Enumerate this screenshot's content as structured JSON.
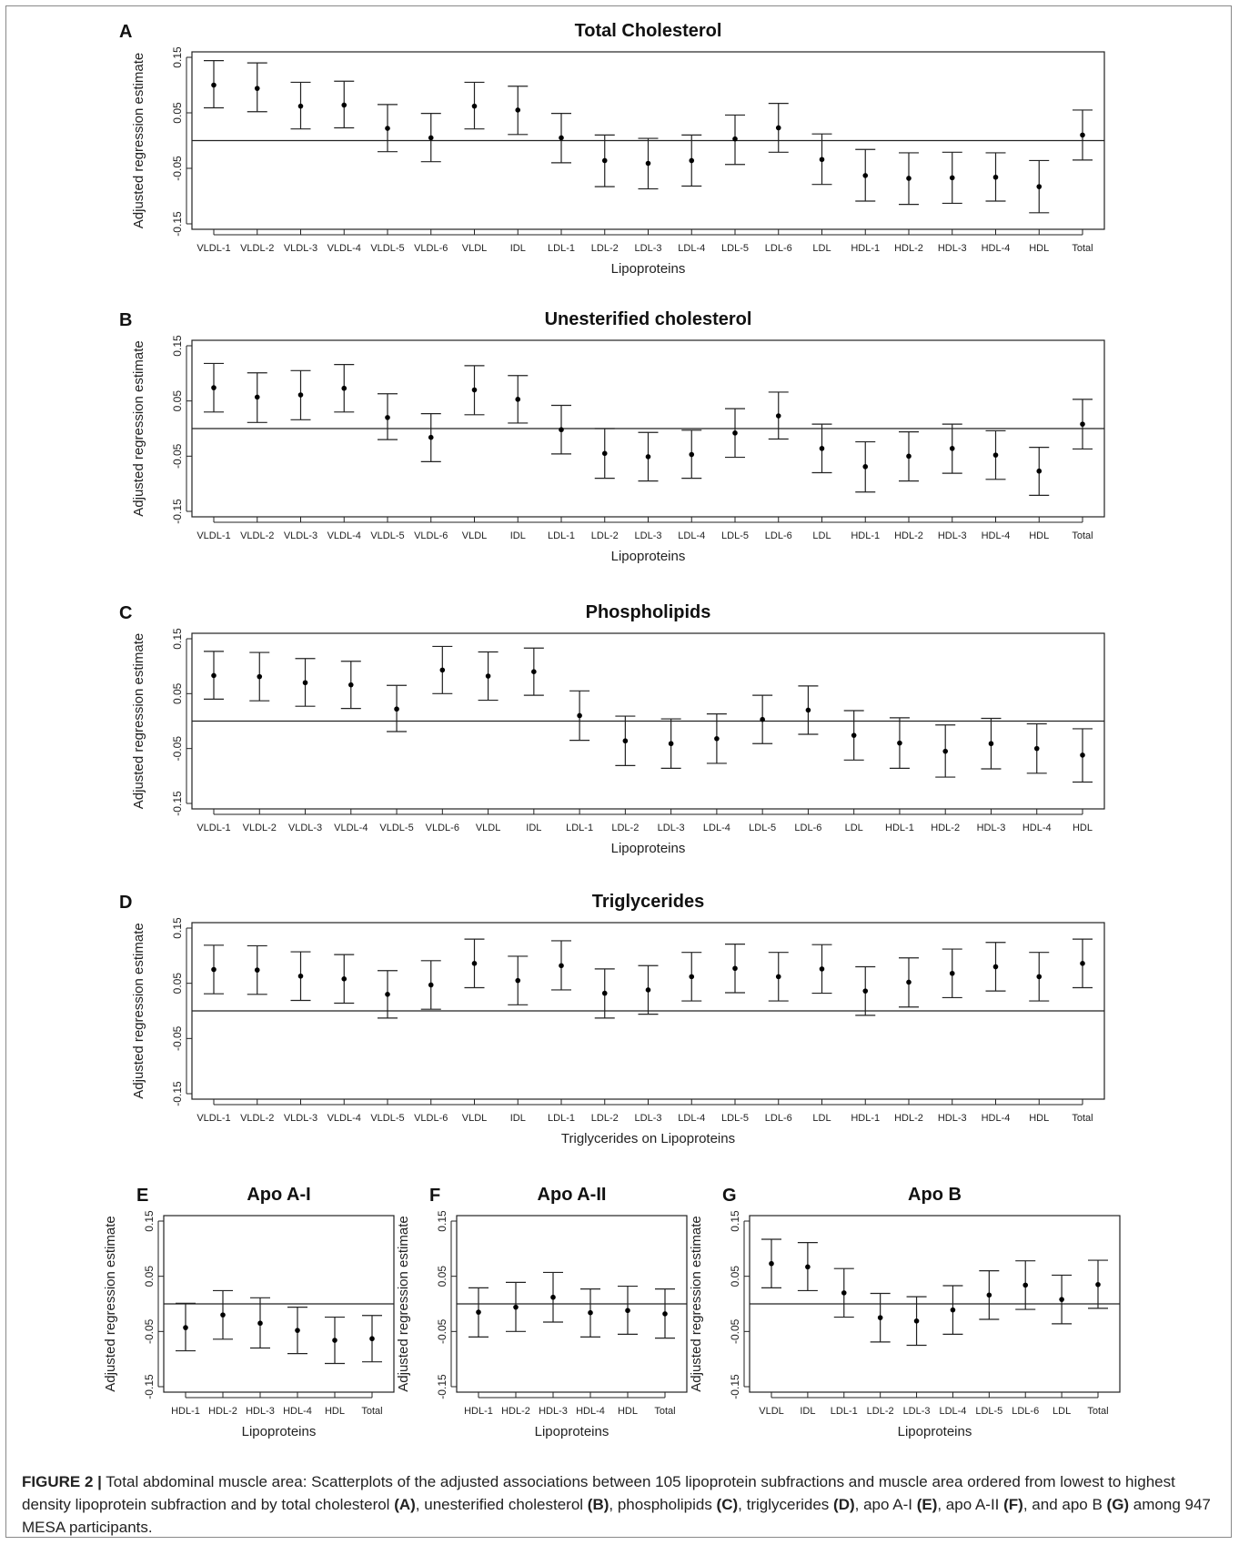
{
  "figure": {
    "caption_lead": "FIGURE 2 |",
    "caption_parts": [
      {
        "t": " Total abdominal muscle area: Scatterplots of the adjusted associations between 105 lipoprotein subfractions and muscle area ordered from lowest to highest density lipoprotein subfraction and by total cholesterol ",
        "b": false
      },
      {
        "t": "(A)",
        "b": true
      },
      {
        "t": ", unesterified cholesterol ",
        "b": false
      },
      {
        "t": "(B)",
        "b": true
      },
      {
        "t": ", phospholipids ",
        "b": false
      },
      {
        "t": "(C)",
        "b": true
      },
      {
        "t": ", triglycerides ",
        "b": false
      },
      {
        "t": "(D)",
        "b": true
      },
      {
        "t": ", apo A-I ",
        "b": false
      },
      {
        "t": "(E)",
        "b": true
      },
      {
        "t": ", apo A-II ",
        "b": false
      },
      {
        "t": "(F)",
        "b": true
      },
      {
        "t": ", and apo B ",
        "b": false
      },
      {
        "t": "(G)",
        "b": true
      },
      {
        "t": " among 947 MESA participants.",
        "b": false
      }
    ]
  },
  "chart_data": [
    {
      "panel": "A",
      "type": "scatter",
      "title": "Total Cholesterol",
      "xlabel": "Lipoproteins",
      "ylabel": "Adjusted regression estimate",
      "ylim": [
        -0.15,
        0.15
      ],
      "yticks": [
        "-0.15",
        "-0.05",
        "0.05",
        "0.15"
      ],
      "categories": [
        "VLDL-1",
        "VLDL-2",
        "VLDL-3",
        "VLDL-4",
        "VLDL-5",
        "VLDL-6",
        "VLDL",
        "IDL",
        "LDL-1",
        "LDL-2",
        "LDL-3",
        "LDL-4",
        "LDL-5",
        "LDL-6",
        "LDL",
        "HDL-1",
        "HDL-2",
        "HDL-3",
        "HDL-4",
        "HDL",
        "Total"
      ],
      "estimate": [
        0.1,
        0.094,
        0.062,
        0.064,
        0.022,
        0.005,
        0.062,
        0.055,
        0.005,
        -0.036,
        -0.041,
        -0.036,
        0.003,
        0.023,
        -0.034,
        -0.063,
        -0.068,
        -0.067,
        -0.066,
        -0.083,
        0.01
      ],
      "lower": [
        0.059,
        0.052,
        0.021,
        0.023,
        -0.02,
        -0.038,
        0.021,
        0.011,
        -0.04,
        -0.083,
        -0.087,
        -0.082,
        -0.043,
        -0.021,
        -0.079,
        -0.109,
        -0.115,
        -0.113,
        -0.109,
        -0.13,
        -0.035
      ],
      "upper": [
        0.144,
        0.14,
        0.105,
        0.107,
        0.065,
        0.049,
        0.105,
        0.098,
        0.049,
        0.01,
        0.004,
        0.01,
        0.046,
        0.067,
        0.012,
        -0.016,
        -0.022,
        -0.021,
        -0.022,
        -0.036,
        0.055
      ],
      "reference_line": 0
    },
    {
      "panel": "B",
      "type": "scatter",
      "title": "Unesterified cholesterol",
      "xlabel": "Lipoproteins",
      "ylabel": "Adjusted regression estimate",
      "ylim": [
        -0.15,
        0.15
      ],
      "yticks": [
        "-0.15",
        "-0.05",
        "0.05",
        "0.15"
      ],
      "categories": [
        "VLDL-1",
        "VLDL-2",
        "VLDL-3",
        "VLDL-4",
        "VLDL-5",
        "VLDL-6",
        "VLDL",
        "IDL",
        "LDL-1",
        "LDL-2",
        "LDL-3",
        "LDL-4",
        "LDL-5",
        "LDL-6",
        "LDL",
        "HDL-1",
        "HDL-2",
        "HDL-3",
        "HDL-4",
        "HDL",
        "Total"
      ],
      "estimate": [
        0.074,
        0.057,
        0.061,
        0.073,
        0.02,
        -0.016,
        0.07,
        0.053,
        -0.002,
        -0.045,
        -0.051,
        -0.047,
        -0.008,
        0.023,
        -0.036,
        -0.069,
        -0.05,
        -0.036,
        -0.048,
        -0.077,
        0.008
      ],
      "lower": [
        0.03,
        0.011,
        0.016,
        0.03,
        -0.02,
        -0.06,
        0.025,
        0.01,
        -0.046,
        -0.09,
        -0.095,
        -0.09,
        -0.052,
        -0.019,
        -0.08,
        -0.115,
        -0.095,
        -0.081,
        -0.092,
        -0.121,
        -0.037
      ],
      "upper": [
        0.118,
        0.101,
        0.105,
        0.116,
        0.063,
        0.027,
        0.114,
        0.096,
        0.042,
        0.0,
        -0.007,
        -0.003,
        0.036,
        0.066,
        0.008,
        -0.024,
        -0.006,
        0.008,
        -0.004,
        -0.034,
        0.053
      ],
      "reference_line": 0
    },
    {
      "panel": "C",
      "type": "scatter",
      "title": "Phospholipids",
      "xlabel": "Lipoproteins",
      "ylabel": "Adjusted regression estimate",
      "ylim": [
        -0.15,
        0.15
      ],
      "yticks": [
        "-0.15",
        "-0.05",
        "0.05",
        "0.15"
      ],
      "categories": [
        "VLDL-1",
        "VLDL-2",
        "VLDL-3",
        "VLDL-4",
        "VLDL-5",
        "VLDL-6",
        "VLDL",
        "IDL",
        "LDL-1",
        "LDL-2",
        "LDL-3",
        "LDL-4",
        "LDL-5",
        "LDL-6",
        "LDL",
        "HDL-1",
        "HDL-2",
        "HDL-3",
        "HDL-4",
        "HDL"
      ],
      "estimate": [
        0.083,
        0.081,
        0.07,
        0.066,
        0.022,
        0.093,
        0.082,
        0.09,
        0.01,
        -0.036,
        -0.041,
        -0.032,
        0.003,
        0.02,
        -0.026,
        -0.04,
        -0.055,
        -0.041,
        -0.05,
        -0.062
      ],
      "lower": [
        0.04,
        0.037,
        0.027,
        0.023,
        -0.019,
        0.05,
        0.038,
        0.047,
        -0.035,
        -0.081,
        -0.086,
        -0.077,
        -0.041,
        -0.024,
        -0.071,
        -0.086,
        -0.102,
        -0.087,
        -0.095,
        -0.111
      ],
      "upper": [
        0.127,
        0.125,
        0.114,
        0.109,
        0.065,
        0.136,
        0.126,
        0.133,
        0.055,
        0.009,
        0.004,
        0.013,
        0.047,
        0.064,
        0.019,
        0.006,
        -0.007,
        0.005,
        -0.005,
        -0.014
      ],
      "reference_line": 0
    },
    {
      "panel": "D",
      "type": "scatter",
      "title": "Triglycerides",
      "xlabel": "Triglycerides on Lipoproteins",
      "ylabel": "Adjusted regression estimate",
      "ylim": [
        -0.15,
        0.15
      ],
      "yticks": [
        "-0.15",
        "-0.05",
        "0.05",
        "0.15"
      ],
      "categories": [
        "VLDL-1",
        "VLDL-2",
        "VLDL-3",
        "VLDL-4",
        "VLDL-5",
        "VLDL-6",
        "VLDL",
        "IDL",
        "LDL-1",
        "LDL-2",
        "LDL-3",
        "LDL-4",
        "LDL-5",
        "LDL-6",
        "LDL",
        "HDL-1",
        "HDL-2",
        "HDL-3",
        "HDL-4",
        "HDL",
        "Total"
      ],
      "estimate": [
        0.075,
        0.074,
        0.063,
        0.058,
        0.03,
        0.047,
        0.086,
        0.055,
        0.082,
        0.032,
        0.038,
        0.062,
        0.077,
        0.062,
        0.076,
        0.036,
        0.052,
        0.068,
        0.08,
        0.062,
        0.086
      ],
      "lower": [
        0.031,
        0.03,
        0.019,
        0.014,
        -0.013,
        0.003,
        0.042,
        0.011,
        0.038,
        -0.013,
        -0.006,
        0.018,
        0.033,
        0.018,
        0.032,
        -0.008,
        0.007,
        0.024,
        0.036,
        0.018,
        0.042
      ],
      "upper": [
        0.119,
        0.118,
        0.107,
        0.102,
        0.073,
        0.091,
        0.13,
        0.099,
        0.127,
        0.076,
        0.082,
        0.106,
        0.121,
        0.106,
        0.12,
        0.08,
        0.096,
        0.112,
        0.124,
        0.106,
        0.13
      ],
      "reference_line": 0
    },
    {
      "panel": "E",
      "type": "scatter",
      "title": "Apo A-I",
      "xlabel": "Lipoproteins",
      "ylabel": "Adjusted regression estimate",
      "ylim": [
        -0.15,
        0.15
      ],
      "yticks": [
        "-0.15",
        "-0.05",
        "0.05",
        "0.15"
      ],
      "categories": [
        "HDL-1",
        "HDL-2",
        "HDL-3",
        "HDL-4",
        "HDL",
        "Total"
      ],
      "estimate": [
        -0.043,
        -0.02,
        -0.035,
        -0.048,
        -0.066,
        -0.063
      ],
      "lower": [
        -0.085,
        -0.064,
        -0.08,
        -0.09,
        -0.108,
        -0.105
      ],
      "upper": [
        0.001,
        0.024,
        0.011,
        -0.006,
        -0.024,
        -0.021
      ],
      "reference_line": 0
    },
    {
      "panel": "F",
      "type": "scatter",
      "title": "Apo A-II",
      "xlabel": "Lipoproteins",
      "ylabel": "Adjusted regression estimate",
      "ylim": [
        -0.15,
        0.15
      ],
      "yticks": [
        "-0.15",
        "-0.05",
        "0.05",
        "0.15"
      ],
      "categories": [
        "HDL-1",
        "HDL-2",
        "HDL-3",
        "HDL-4",
        "HDL",
        "Total"
      ],
      "estimate": [
        -0.015,
        -0.006,
        0.012,
        -0.016,
        -0.012,
        -0.018
      ],
      "lower": [
        -0.06,
        -0.05,
        -0.033,
        -0.06,
        -0.055,
        -0.062
      ],
      "upper": [
        0.029,
        0.039,
        0.057,
        0.027,
        0.032,
        0.027
      ],
      "reference_line": 0
    },
    {
      "panel": "G",
      "type": "scatter",
      "title": "Apo B",
      "xlabel": "Lipoproteins",
      "ylabel": "Adjusted regression estimate",
      "ylim": [
        -0.15,
        0.15
      ],
      "yticks": [
        "-0.15",
        "-0.05",
        "0.05",
        "0.15"
      ],
      "categories": [
        "VLDL",
        "IDL",
        "LDL-1",
        "LDL-2",
        "LDL-3",
        "LDL-4",
        "LDL-5",
        "LDL-6",
        "LDL",
        "Total"
      ],
      "estimate": [
        0.073,
        0.067,
        0.02,
        -0.025,
        -0.031,
        -0.011,
        0.016,
        0.034,
        0.008,
        0.035
      ],
      "lower": [
        0.029,
        0.024,
        -0.024,
        -0.069,
        -0.075,
        -0.055,
        -0.028,
        -0.01,
        -0.036,
        -0.008
      ],
      "upper": [
        0.117,
        0.111,
        0.064,
        0.019,
        0.013,
        0.033,
        0.06,
        0.078,
        0.052,
        0.079
      ],
      "reference_line": 0
    }
  ]
}
